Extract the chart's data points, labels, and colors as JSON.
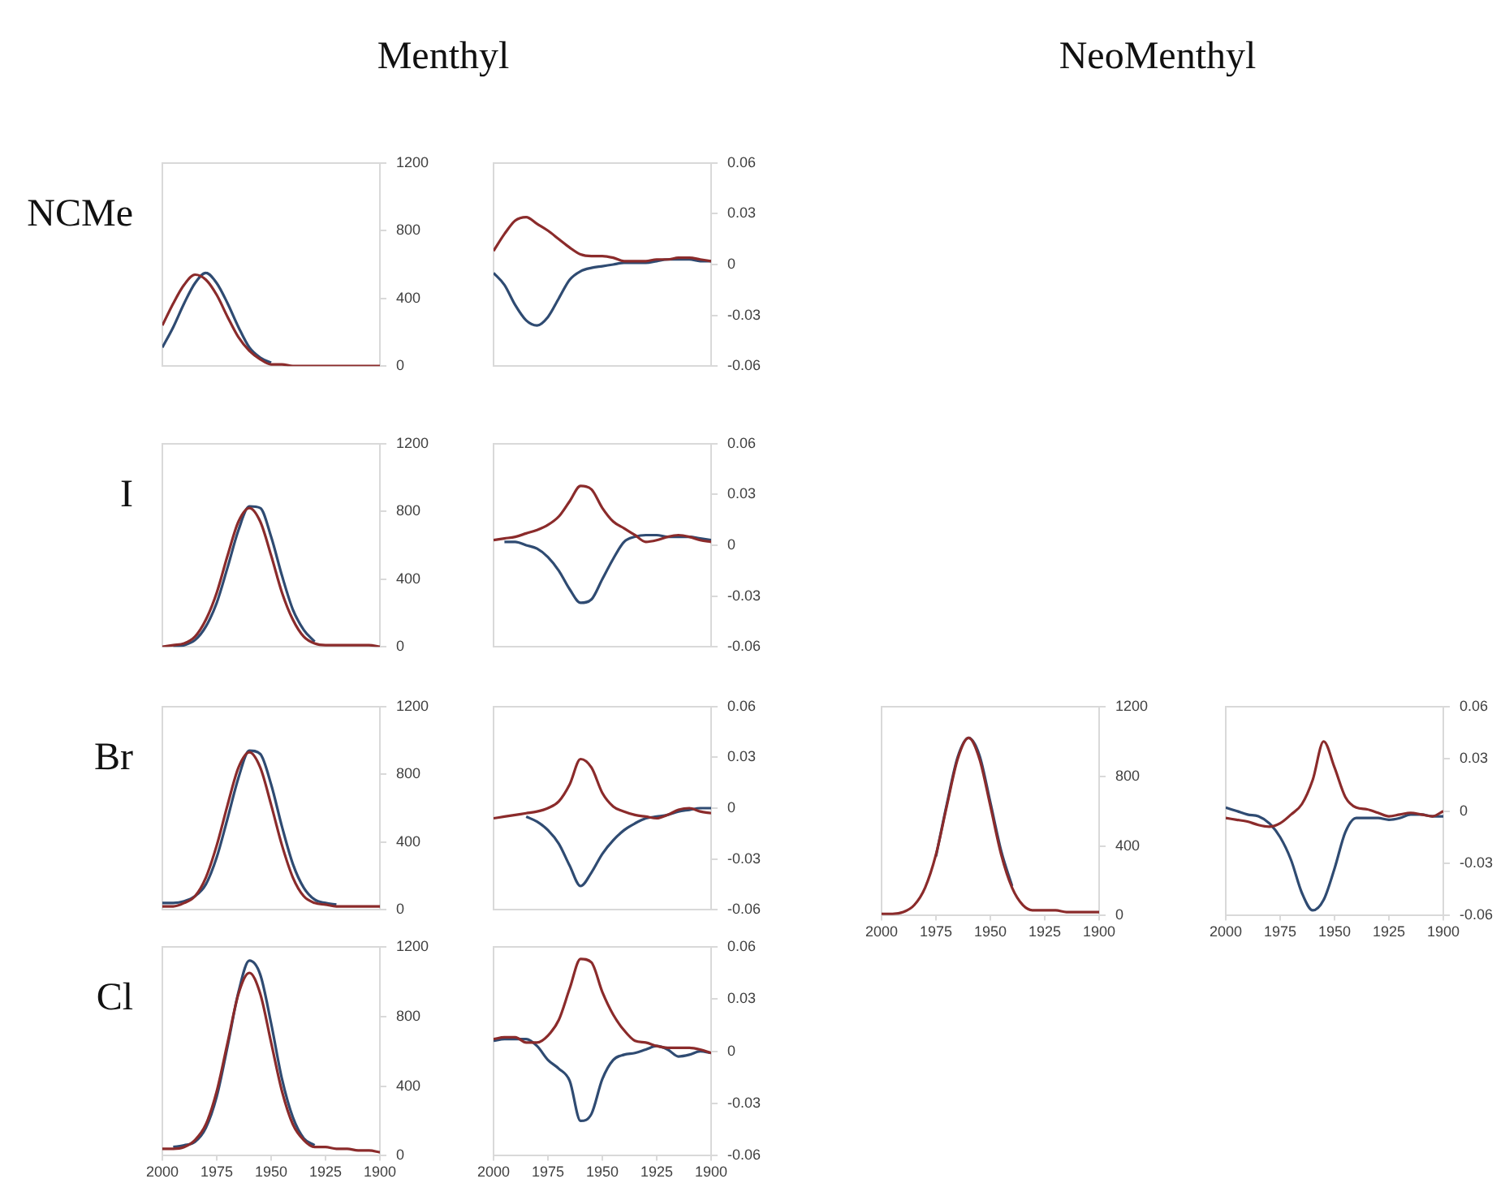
{
  "chart_data": [
    {
      "type": "other",
      "title": "Menthyl"
    },
    {
      "type": "other",
      "title": "NeoMenthyl"
    },
    {
      "type": "line",
      "ylabel": "NCMe",
      "x": [
        2000,
        1995,
        1990,
        1985,
        1980,
        1975,
        1970,
        1965,
        1960,
        1955,
        1950,
        1945,
        1940,
        1935,
        1930,
        1925,
        1920,
        1915,
        1910,
        1905,
        1900
      ],
      "xlim": [
        2000,
        1900
      ],
      "xticks": [
        2000,
        1975,
        1950,
        1925,
        1900
      ],
      "ylim": [
        0,
        1200
      ],
      "yticks": [
        0,
        400,
        800,
        1200
      ],
      "tick_labels": "y",
      "series": [
        {
          "color": "#2f4b72",
          "values": [
            110,
            230,
            370,
            490,
            550,
            490,
            370,
            230,
            110,
            50,
            20,
            null,
            null,
            null,
            null,
            null,
            null,
            null,
            null,
            null,
            null
          ]
        },
        {
          "color": "#8b2b2b",
          "values": [
            240,
            370,
            480,
            540,
            510,
            420,
            290,
            170,
            90,
            40,
            10,
            10,
            0,
            0,
            0,
            0,
            0,
            0,
            0,
            0,
            0
          ]
        }
      ]
    },
    {
      "type": "line",
      "x": [
        2000,
        1995,
        1990,
        1985,
        1980,
        1975,
        1970,
        1965,
        1960,
        1955,
        1950,
        1945,
        1940,
        1935,
        1930,
        1925,
        1920,
        1915,
        1910,
        1905,
        1900
      ],
      "xlim": [
        2000,
        1900
      ],
      "xticks": [
        2000,
        1975,
        1950,
        1925,
        1900
      ],
      "ylim": [
        -0.06,
        0.06
      ],
      "yticks": [
        -0.06,
        -0.03,
        0,
        0.03,
        0.06
      ],
      "tick_labels": "y",
      "series": [
        {
          "color": "#2f4b72",
          "values": [
            -0.005,
            -0.012,
            -0.024,
            -0.033,
            -0.036,
            -0.031,
            -0.02,
            -0.009,
            -0.004,
            -0.002,
            -0.001,
            0,
            0.001,
            0.001,
            0.001,
            0.002,
            0.003,
            0.003,
            0.003,
            0.002,
            0.002
          ]
        },
        {
          "color": "#8b2b2b",
          "values": [
            0.008,
            0.018,
            0.026,
            0.028,
            0.024,
            0.02,
            0.015,
            0.01,
            0.006,
            0.005,
            0.005,
            0.004,
            0.002,
            0.002,
            0.002,
            0.003,
            0.003,
            0.004,
            0.004,
            0.003,
            0.002
          ]
        }
      ]
    },
    {
      "type": "line",
      "ylabel": "I",
      "x": [
        2000,
        1995,
        1990,
        1985,
        1980,
        1975,
        1970,
        1965,
        1960,
        1955,
        1950,
        1945,
        1940,
        1935,
        1930,
        1925,
        1920,
        1915,
        1910,
        1905,
        1900
      ],
      "xlim": [
        2000,
        1900
      ],
      "xticks": [
        2000,
        1975,
        1950,
        1925,
        1900
      ],
      "ylim": [
        0,
        1200
      ],
      "yticks": [
        0,
        400,
        800,
        1200
      ],
      "tick_labels": "y",
      "series": [
        {
          "color": "#2f4b72",
          "values": [
            null,
            0,
            10,
            40,
            120,
            260,
            470,
            690,
            830,
            820,
            650,
            420,
            220,
            100,
            30,
            null,
            null,
            null,
            null,
            null,
            null
          ]
        },
        {
          "color": "#8b2b2b",
          "values": [
            0,
            10,
            20,
            60,
            160,
            320,
            540,
            740,
            820,
            740,
            540,
            320,
            160,
            60,
            20,
            10,
            10,
            10,
            10,
            10,
            0
          ]
        }
      ]
    },
    {
      "type": "line",
      "x": [
        2000,
        1995,
        1990,
        1985,
        1980,
        1975,
        1970,
        1965,
        1960,
        1955,
        1950,
        1945,
        1940,
        1935,
        1930,
        1925,
        1920,
        1915,
        1910,
        1905,
        1900
      ],
      "xlim": [
        2000,
        1900
      ],
      "xticks": [
        2000,
        1975,
        1950,
        1925,
        1900
      ],
      "ylim": [
        -0.06,
        0.06
      ],
      "yticks": [
        -0.06,
        -0.03,
        0,
        0.03,
        0.06
      ],
      "tick_labels": "y",
      "series": [
        {
          "color": "#2f4b72",
          "values": [
            null,
            0.002,
            0.002,
            0,
            -0.002,
            -0.007,
            -0.015,
            -0.026,
            -0.034,
            -0.032,
            -0.02,
            -0.008,
            0.002,
            0.005,
            0.006,
            0.006,
            0.005,
            0.005,
            0.005,
            0.004,
            0.003
          ]
        },
        {
          "color": "#8b2b2b",
          "values": [
            0.003,
            0.004,
            0.005,
            0.007,
            0.009,
            0.012,
            0.017,
            0.026,
            0.035,
            0.033,
            0.022,
            0.014,
            0.01,
            0.006,
            0.002,
            0.003,
            0.005,
            0.006,
            0.005,
            0.003,
            0.002
          ]
        }
      ]
    },
    {
      "type": "line",
      "ylabel": "Br",
      "x": [
        2000,
        1995,
        1990,
        1985,
        1980,
        1975,
        1970,
        1965,
        1960,
        1955,
        1950,
        1945,
        1940,
        1935,
        1930,
        1925,
        1920,
        1915,
        1910,
        1905,
        1900
      ],
      "xlim": [
        2000,
        1900
      ],
      "xticks": [
        2000,
        1975,
        1950,
        1925,
        1900
      ],
      "ylim": [
        0,
        1200
      ],
      "yticks": [
        0,
        400,
        800,
        1200
      ],
      "tick_labels": "y",
      "series": [
        {
          "color": "#2f4b72",
          "values": [
            40,
            40,
            50,
            80,
            150,
            310,
            540,
            780,
            940,
            920,
            740,
            490,
            270,
            130,
            60,
            40,
            30,
            null,
            null,
            null,
            null
          ]
        },
        {
          "color": "#8b2b2b",
          "values": [
            20,
            20,
            40,
            80,
            190,
            380,
            620,
            840,
            930,
            840,
            620,
            380,
            190,
            80,
            40,
            30,
            20,
            20,
            20,
            20,
            20
          ]
        }
      ]
    },
    {
      "type": "line",
      "x": [
        2000,
        1995,
        1990,
        1985,
        1980,
        1975,
        1970,
        1965,
        1960,
        1955,
        1950,
        1945,
        1940,
        1935,
        1930,
        1925,
        1920,
        1915,
        1910,
        1905,
        1900
      ],
      "xlim": [
        2000,
        1900
      ],
      "xticks": [
        2000,
        1975,
        1950,
        1925,
        1900
      ],
      "ylim": [
        -0.06,
        0.06
      ],
      "yticks": [
        -0.06,
        -0.03,
        0,
        0.03,
        0.06
      ],
      "tick_labels": "y",
      "series": [
        {
          "color": "#2f4b72",
          "values": [
            null,
            null,
            null,
            -0.005,
            -0.008,
            -0.013,
            -0.021,
            -0.034,
            -0.046,
            -0.038,
            -0.027,
            -0.019,
            -0.013,
            -0.009,
            -0.006,
            -0.005,
            -0.004,
            -0.002,
            -0.001,
            0,
            0
          ]
        },
        {
          "color": "#8b2b2b",
          "values": [
            -0.006,
            -0.005,
            -0.004,
            -0.003,
            -0.002,
            0,
            0.004,
            0.014,
            0.029,
            0.024,
            0.009,
            0.001,
            -0.002,
            -0.004,
            -0.005,
            -0.006,
            -0.004,
            -0.001,
            0,
            -0.002,
            -0.003
          ]
        }
      ]
    },
    {
      "type": "line",
      "x": [
        2000,
        1995,
        1990,
        1985,
        1980,
        1975,
        1970,
        1965,
        1960,
        1955,
        1950,
        1945,
        1940,
        1935,
        1930,
        1925,
        1920,
        1915,
        1910,
        1905,
        1900
      ],
      "xlim": [
        2000,
        1900
      ],
      "xticks": [
        2000,
        1975,
        1950,
        1925,
        1900
      ],
      "ylim": [
        0,
        1200
      ],
      "yticks": [
        0,
        400,
        800,
        1200
      ],
      "series": [
        {
          "color": "#2f4b72",
          "values": [
            null,
            null,
            null,
            null,
            null,
            340,
            640,
            910,
            1020,
            920,
            650,
            370,
            170,
            null,
            null,
            null,
            null,
            null,
            null,
            null,
            null
          ]
        },
        {
          "color": "#8b2b2b",
          "values": [
            10,
            10,
            20,
            60,
            160,
            350,
            630,
            900,
            1020,
            900,
            630,
            350,
            160,
            60,
            30,
            30,
            30,
            20,
            20,
            20,
            20
          ]
        }
      ]
    },
    {
      "type": "line",
      "x": [
        2000,
        1995,
        1990,
        1985,
        1980,
        1975,
        1970,
        1965,
        1960,
        1955,
        1950,
        1945,
        1940,
        1935,
        1930,
        1925,
        1920,
        1915,
        1910,
        1905,
        1900
      ],
      "xlim": [
        2000,
        1900
      ],
      "xticks": [
        2000,
        1975,
        1950,
        1925,
        1900
      ],
      "ylim": [
        -0.06,
        0.06
      ],
      "yticks": [
        -0.06,
        -0.03,
        0,
        0.03,
        0.06
      ],
      "series": [
        {
          "color": "#2f4b72",
          "values": [
            0.002,
            0,
            -0.002,
            -0.003,
            -0.007,
            -0.015,
            -0.028,
            -0.047,
            -0.057,
            -0.051,
            -0.033,
            -0.012,
            -0.004,
            -0.004,
            -0.004,
            -0.005,
            -0.004,
            -0.002,
            -0.002,
            -0.003,
            -0.003
          ]
        },
        {
          "color": "#8b2b2b",
          "values": [
            -0.004,
            -0.005,
            -0.006,
            -0.008,
            -0.009,
            -0.007,
            -0.002,
            0.004,
            0.018,
            0.04,
            0.025,
            0.008,
            0.002,
            0.001,
            -0.001,
            -0.003,
            -0.002,
            -0.001,
            -0.002,
            -0.003,
            0
          ]
        }
      ]
    },
    {
      "type": "line",
      "ylabel": "Cl",
      "x": [
        2000,
        1995,
        1990,
        1985,
        1980,
        1975,
        1970,
        1965,
        1960,
        1955,
        1950,
        1945,
        1940,
        1935,
        1930,
        1925,
        1920,
        1915,
        1910,
        1905,
        1900
      ],
      "xlim": [
        2000,
        1900
      ],
      "xticks": [
        2000,
        1975,
        1950,
        1925,
        1900
      ],
      "ylim": [
        0,
        1200
      ],
      "yticks": [
        0,
        400,
        800,
        1200
      ],
      "series": [
        {
          "color": "#2f4b72",
          "values": [
            null,
            50,
            60,
            80,
            160,
            340,
            630,
            940,
            1120,
            1040,
            760,
            440,
            220,
            100,
            60,
            null,
            null,
            null,
            null,
            null,
            null
          ]
        },
        {
          "color": "#8b2b2b",
          "values": [
            40,
            40,
            50,
            90,
            180,
            370,
            650,
            930,
            1050,
            930,
            650,
            370,
            180,
            90,
            50,
            50,
            40,
            40,
            30,
            30,
            20
          ]
        }
      ]
    },
    {
      "type": "line",
      "x": [
        2000,
        1995,
        1990,
        1985,
        1980,
        1975,
        1970,
        1965,
        1960,
        1955,
        1950,
        1945,
        1940,
        1935,
        1930,
        1925,
        1920,
        1915,
        1910,
        1905,
        1900
      ],
      "xlim": [
        2000,
        1900
      ],
      "xticks": [
        2000,
        1975,
        1950,
        1925,
        1900
      ],
      "ylim": [
        -0.06,
        0.06
      ],
      "yticks": [
        -0.06,
        -0.03,
        0,
        0.03,
        0.06
      ],
      "series": [
        {
          "color": "#2f4b72",
          "values": [
            0.006,
            0.007,
            null,
            0.007,
            0.003,
            -0.005,
            -0.01,
            -0.017,
            -0.04,
            -0.036,
            -0.016,
            -0.005,
            -0.002,
            -0.001,
            0.001,
            0.003,
            0.001,
            -0.003,
            -0.002,
            0,
            -0.001
          ]
        },
        {
          "color": "#8b2b2b",
          "values": [
            0.007,
            0.008,
            0.008,
            0.005,
            0.005,
            0.009,
            0.018,
            0.036,
            0.053,
            0.051,
            0.034,
            0.021,
            0.012,
            0.006,
            0.005,
            0.003,
            0.002,
            0.002,
            0.002,
            0.001,
            -0.001
          ]
        }
      ]
    }
  ]
}
